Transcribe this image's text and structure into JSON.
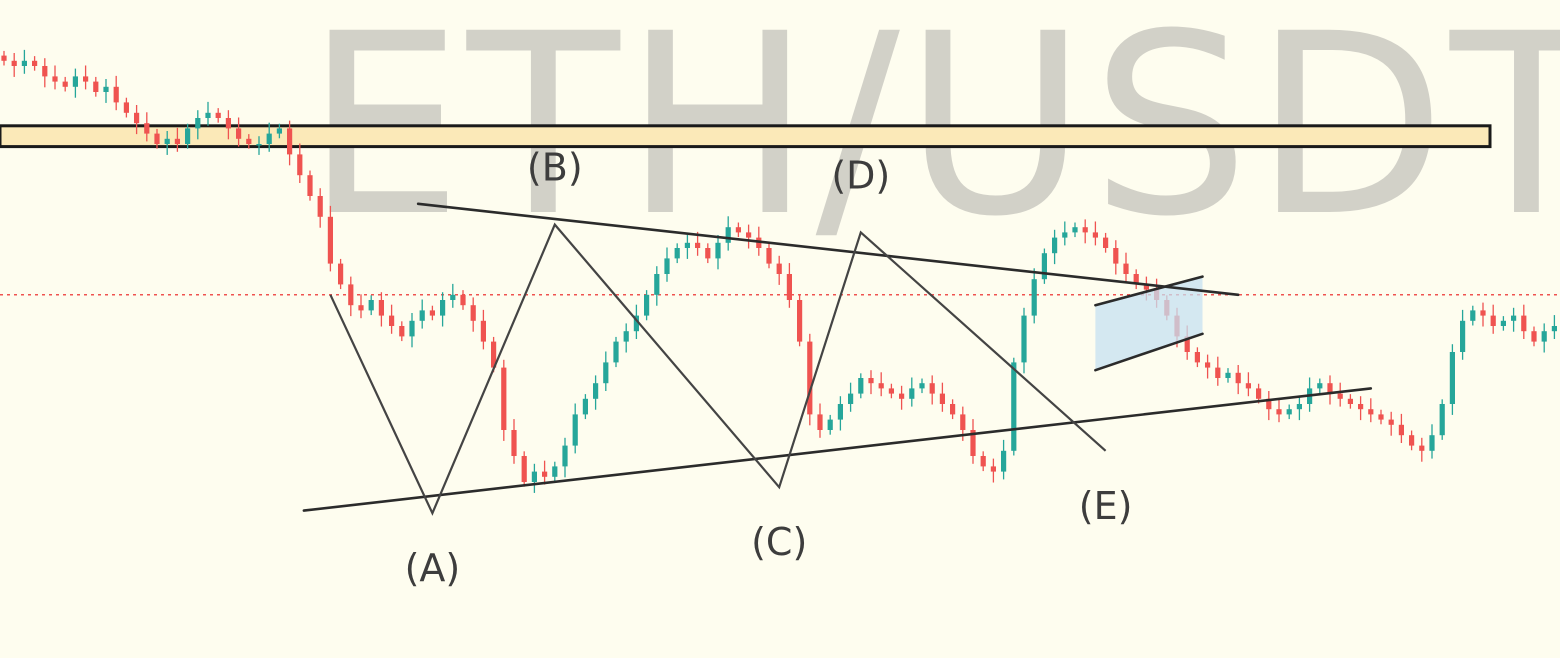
{
  "watermark": {
    "text": "ETH/USDT,"
  },
  "colors": {
    "background": "#fefdef",
    "bull": "#26a69a",
    "bear": "#ef5350",
    "zone_fill": "#fbe9b8",
    "zone_stroke": "#1a1a1a",
    "trendline": "#2b2b2b",
    "price_line": "#ef5350",
    "flag_fill": "#c6e0f2"
  },
  "chart_data": {
    "type": "candlestick",
    "title": "ETH/USDT",
    "xlabel": "",
    "ylabel": "",
    "ylim": [
      0,
      100
    ],
    "grid": false,
    "legend": "none",
    "pattern": "contracting triangle (A)-(B)-(C)-(D)-(E) followed by bull flag breakout",
    "wave_labels": [
      {
        "label": "(A)",
        "x": 42,
        "y": 9
      },
      {
        "label": "(B)",
        "x": 54,
        "y": 64.5
      },
      {
        "label": "(C)",
        "x": 76,
        "y": 14
      },
      {
        "label": "(D)",
        "x": 84,
        "y": 63
      },
      {
        "label": "(E)",
        "x": 108,
        "y": 21
      }
    ],
    "wave_path": [
      {
        "x": 32,
        "y": 51
      },
      {
        "x": 42,
        "y": 9
      },
      {
        "x": 54,
        "y": 64.5
      },
      {
        "x": 76,
        "y": 14
      },
      {
        "x": 84,
        "y": 63
      },
      {
        "x": 108,
        "y": 21
      }
    ],
    "triangle_upper_line": [
      {
        "x": 40.6,
        "y": 68.5
      },
      {
        "x": 121,
        "y": 51
      }
    ],
    "triangle_lower_line": [
      {
        "x": 29.4,
        "y": 9.5
      },
      {
        "x": 134,
        "y": 33
      }
    ],
    "resistance_zone": {
      "low": 79.5,
      "high": 83.5
    },
    "current_price": 51,
    "flag": {
      "upper": [
        {
          "x": 107,
          "y": 49
        },
        {
          "x": 117.5,
          "y": 54.5
        }
      ],
      "lower": [
        {
          "x": 107,
          "y": 36.5
        },
        {
          "x": 117.5,
          "y": 43.5
        }
      ]
    },
    "closes": [
      96,
      95,
      96,
      95,
      93,
      92,
      91,
      93,
      92,
      90,
      91,
      88,
      86,
      84,
      82,
      80,
      81,
      80,
      83,
      85,
      86,
      85,
      83,
      81,
      80,
      80,
      82,
      83,
      78,
      74,
      70,
      66,
      57,
      53,
      49,
      48,
      50,
      47,
      45,
      43,
      46,
      48,
      47,
      50,
      51,
      49,
      46,
      42,
      37,
      25,
      20,
      15,
      17,
      16,
      18,
      22,
      28,
      31,
      34,
      38,
      42,
      44,
      47,
      51,
      55,
      58,
      60,
      61,
      60,
      58,
      61,
      64,
      63,
      62,
      60,
      57,
      55,
      50,
      42,
      28,
      25,
      27,
      30,
      32,
      35,
      34,
      33,
      32,
      31,
      33,
      34,
      32,
      30,
      28,
      25,
      20,
      18,
      17,
      21,
      38,
      47,
      54,
      59,
      62,
      63,
      64,
      63,
      62,
      60,
      57,
      55,
      53,
      52,
      50,
      47,
      43,
      40,
      38,
      37,
      35,
      36,
      34,
      33,
      31,
      29,
      28,
      29,
      30,
      33,
      34,
      32,
      31,
      30,
      29,
      28,
      27,
      26,
      24,
      22,
      21,
      24,
      30,
      40,
      46,
      48,
      47,
      45,
      46,
      47,
      44,
      42,
      44,
      45,
      46,
      44,
      43,
      45,
      48,
      51,
      55,
      60,
      66,
      70,
      72,
      73,
      74,
      75,
      76,
      74,
      73,
      75,
      76,
      77,
      79,
      81,
      83,
      84,
      85,
      84,
      83,
      82,
      83,
      84,
      85,
      84,
      83,
      84,
      85,
      86,
      85,
      83,
      81,
      80,
      79,
      80,
      81,
      82,
      81,
      80,
      79,
      80,
      81,
      82,
      83,
      84,
      85,
      86,
      87,
      88,
      89,
      90,
      88,
      86,
      82,
      80,
      87,
      92,
      97,
      96
    ]
  }
}
